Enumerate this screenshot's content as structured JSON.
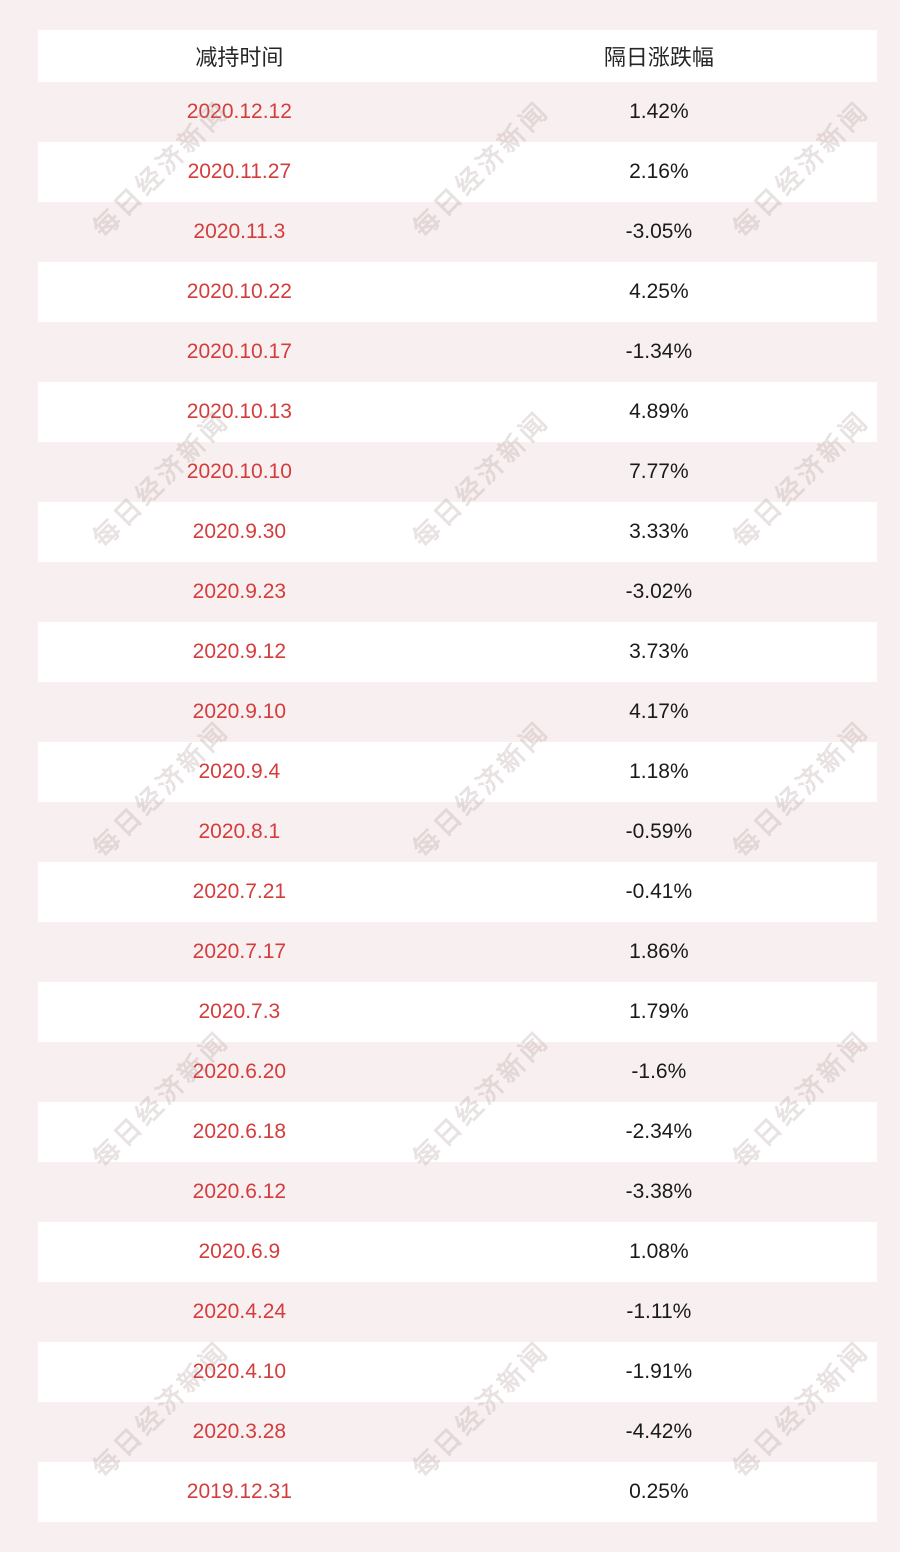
{
  "watermark": {
    "text": "每日经济新闻"
  },
  "colors": {
    "page_background": "#f8f0f0",
    "row_white": "#ffffff",
    "date_red": "#d53c3c",
    "value_black": "#1a1a1a"
  },
  "chart_data": {
    "type": "table",
    "title": "",
    "columns": [
      "减持时间",
      "隔日涨跌幅"
    ],
    "rows": [
      {
        "date": "2020.12.12",
        "change": "1.42%"
      },
      {
        "date": "2020.11.27",
        "change": "2.16%"
      },
      {
        "date": "2020.11.3",
        "change": "-3.05%"
      },
      {
        "date": "2020.10.22",
        "change": "4.25%"
      },
      {
        "date": "2020.10.17",
        "change": "-1.34%"
      },
      {
        "date": "2020.10.13",
        "change": "4.89%"
      },
      {
        "date": "2020.10.10",
        "change": "7.77%"
      },
      {
        "date": "2020.9.30",
        "change": "3.33%"
      },
      {
        "date": "2020.9.23",
        "change": "-3.02%"
      },
      {
        "date": "2020.9.12",
        "change": "3.73%"
      },
      {
        "date": "2020.9.10",
        "change": "4.17%"
      },
      {
        "date": "2020.9.4",
        "change": "1.18%"
      },
      {
        "date": "2020.8.1",
        "change": "-0.59%"
      },
      {
        "date": "2020.7.21",
        "change": "-0.41%"
      },
      {
        "date": "2020.7.17",
        "change": "1.86%"
      },
      {
        "date": "2020.7.3",
        "change": "1.79%"
      },
      {
        "date": "2020.6.20",
        "change": "-1.6%"
      },
      {
        "date": "2020.6.18",
        "change": "-2.34%"
      },
      {
        "date": "2020.6.12",
        "change": "-3.38%"
      },
      {
        "date": "2020.6.9",
        "change": "1.08%"
      },
      {
        "date": "2020.4.24",
        "change": "-1.11%"
      },
      {
        "date": "2020.4.10",
        "change": "-1.91%"
      },
      {
        "date": "2020.3.28",
        "change": "-4.42%"
      },
      {
        "date": "2019.12.31",
        "change": "0.25%"
      }
    ],
    "values": [
      1.42,
      2.16,
      -3.05,
      4.25,
      -1.34,
      4.89,
      7.77,
      3.33,
      -3.02,
      3.73,
      4.17,
      1.18,
      -0.59,
      -0.41,
      1.86,
      1.79,
      -1.6,
      -2.34,
      -3.38,
      1.08,
      -1.11,
      -1.91,
      -4.42,
      0.25
    ]
  }
}
